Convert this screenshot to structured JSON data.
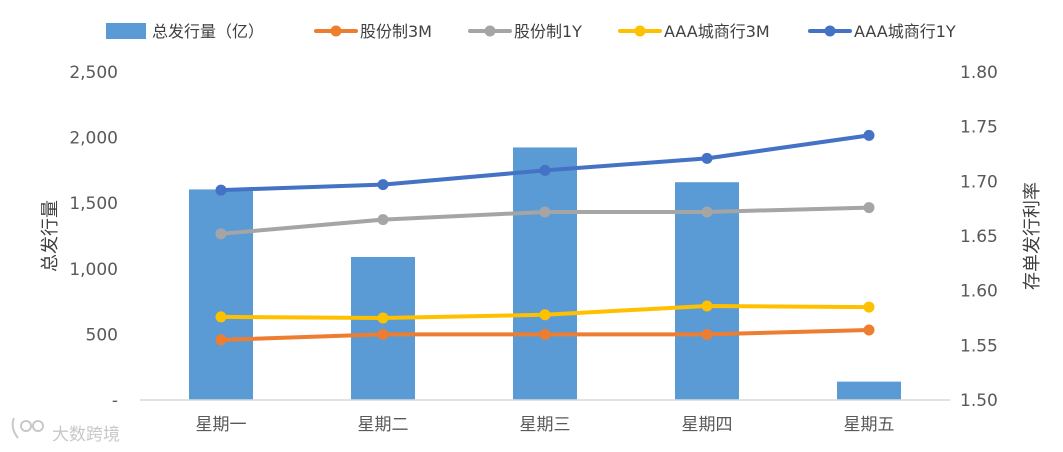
{
  "chart_data": {
    "type": "bar",
    "categories": [
      "星期一",
      "星期二",
      "星期三",
      "星期四",
      "星期五"
    ],
    "bar_series": {
      "name": "总发行量（亿）",
      "color": "#5b9bd5",
      "values": [
        1605,
        1090,
        1925,
        1660,
        140
      ]
    },
    "line_series": [
      {
        "name": "股份制3M",
        "color": "#ed7d31",
        "values": [
          1.555,
          1.56,
          1.56,
          1.56,
          1.564
        ]
      },
      {
        "name": "股份制1Y",
        "color": "#a5a5a5",
        "values": [
          1.652,
          1.665,
          1.672,
          1.672,
          1.676
        ]
      },
      {
        "name": "AAA城商行3M",
        "color": "#ffc000",
        "values": [
          1.576,
          1.575,
          1.578,
          1.586,
          1.585
        ]
      },
      {
        "name": "AAA城商行1Y",
        "color": "#4472c4",
        "values": [
          1.692,
          1.697,
          1.71,
          1.721,
          1.742
        ]
      }
    ],
    "y_left": {
      "label": "总发行量",
      "range": [
        0,
        2500
      ],
      "ticks": [
        0,
        500,
        1000,
        1500,
        2000,
        2500
      ],
      "tick_labels": [
        "-",
        "500",
        "1,000",
        "1,500",
        "2,000",
        "2,500"
      ]
    },
    "y_right": {
      "label": "存单发行利率",
      "range": [
        1.5,
        1.8
      ],
      "ticks": [
        1.5,
        1.55,
        1.6,
        1.65,
        1.7,
        1.75,
        1.8
      ],
      "tick_labels": [
        "1.50",
        "1.55",
        "1.60",
        "1.65",
        "1.70",
        "1.75",
        "1.80"
      ]
    },
    "legend_position": "top",
    "grid": false
  },
  "watermark": {
    "text": "大数跨境",
    "icon": "logo-icon"
  }
}
